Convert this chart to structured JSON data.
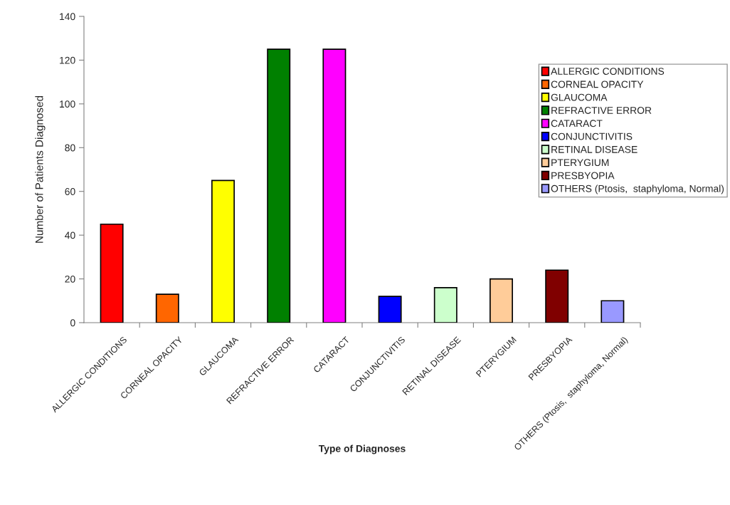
{
  "chart_data": {
    "type": "bar",
    "xlabel": "Type of Diagnoses",
    "ylabel": "Number of Patients Diagnosed",
    "categories": [
      "ALLERGIC CONDITIONS",
      "CORNEAL OPACITY",
      "GLAUCOMA",
      "REFRACTIVE ERROR",
      "CATARACT",
      "CONJUNCTIVITIS",
      "RETINAL DISEASE",
      "PTERYGIUM",
      "PRESBYOPIA",
      "OTHERS (Ptosis,  staphyloma, Normal)"
    ],
    "series": [
      {
        "name": "ALLERGIC CONDITIONS",
        "color": "#ff0000",
        "values": [
          45,
          null,
          null,
          null,
          null,
          null,
          null,
          null,
          null,
          null
        ]
      },
      {
        "name": "CORNEAL OPACITY",
        "color": "#ff6600",
        "values": [
          null,
          13,
          null,
          null,
          null,
          null,
          null,
          null,
          null,
          null
        ]
      },
      {
        "name": "GLAUCOMA",
        "color": "#ffff00",
        "values": [
          null,
          null,
          65,
          null,
          null,
          null,
          null,
          null,
          null,
          null
        ]
      },
      {
        "name": "REFRACTIVE ERROR",
        "color": "#008000",
        "values": [
          null,
          null,
          null,
          125,
          null,
          null,
          null,
          null,
          null,
          null
        ]
      },
      {
        "name": "CATARACT",
        "color": "#ff00ff",
        "values": [
          null,
          null,
          null,
          null,
          125,
          null,
          null,
          null,
          null,
          null
        ]
      },
      {
        "name": "CONJUNCTIVITIS",
        "color": "#0000ff",
        "values": [
          null,
          null,
          null,
          null,
          null,
          12,
          null,
          null,
          null,
          null
        ]
      },
      {
        "name": "RETINAL DISEASE",
        "color": "#ccffcc",
        "values": [
          null,
          null,
          null,
          null,
          null,
          null,
          16,
          null,
          null,
          null
        ]
      },
      {
        "name": "PTERYGIUM",
        "color": "#ffcc99",
        "values": [
          null,
          null,
          null,
          null,
          null,
          null,
          null,
          20,
          null,
          null
        ]
      },
      {
        "name": "PRESBYOPIA",
        "color": "#800000",
        "values": [
          null,
          null,
          null,
          null,
          null,
          null,
          null,
          null,
          24,
          null
        ]
      },
      {
        "name": "OTHERS (Ptosis,  staphyloma, Normal)",
        "color": "#9999ff",
        "values": [
          null,
          null,
          null,
          null,
          null,
          null,
          null,
          null,
          null,
          10
        ]
      }
    ],
    "ylim": [
      0,
      140
    ],
    "yticks": [
      0,
      20,
      40,
      60,
      80,
      100,
      120,
      140
    ],
    "legend": "right",
    "grid": false
  }
}
